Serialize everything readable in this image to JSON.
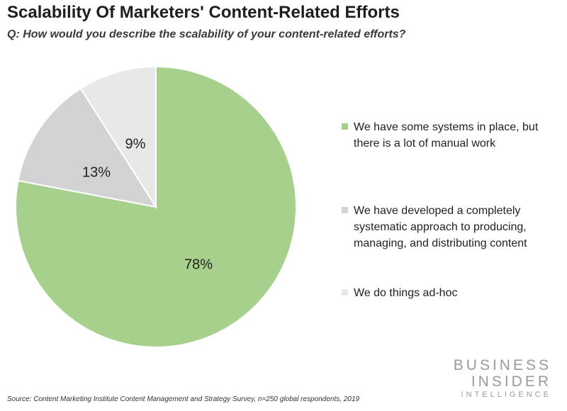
{
  "header": {
    "title": "Scalability Of Marketers' Content-Related Efforts",
    "subtitle": "Q: How would you describe the scalability of your content-related efforts?"
  },
  "chart_data": {
    "type": "pie",
    "title": "Scalability Of Marketers' Content-Related Efforts",
    "subtitle": "Q: How would you describe the scalability of your content-related efforts?",
    "start_angle_deg": 0,
    "direction": "clockwise",
    "legend_position": "right",
    "slices": [
      {
        "label": "We have some systems in place, but there is a lot of manual work",
        "value": 78,
        "display": "78%",
        "color": "#a8d08d"
      },
      {
        "label": "We have developed a completely systematic approach to producing, managing, and distributing content",
        "value": 13,
        "display": "13%",
        "color": "#d3d2d4"
      },
      {
        "label": "We do things ad-hoc",
        "value": 9,
        "display": "9%",
        "color": "#e8e8e9"
      }
    ]
  },
  "legend": {
    "items": [
      {
        "text": "We have some systems in place, but there is a lot of manual work",
        "color": "#a8d08d"
      },
      {
        "text": "We have developed a completely systematic approach to producing, managing, and distributing content",
        "color": "#d3d2d4"
      },
      {
        "text": "We do things ad-hoc",
        "color": "#e8e8e9"
      }
    ]
  },
  "logo": {
    "line1": "BUSINESS",
    "line2": "INSIDER",
    "line3": "INTELLIGENCE"
  },
  "footer": {
    "source": "Source: Content Marketing Institute Content Management and Strategy Survey, n=250 global respondents, 2019"
  }
}
